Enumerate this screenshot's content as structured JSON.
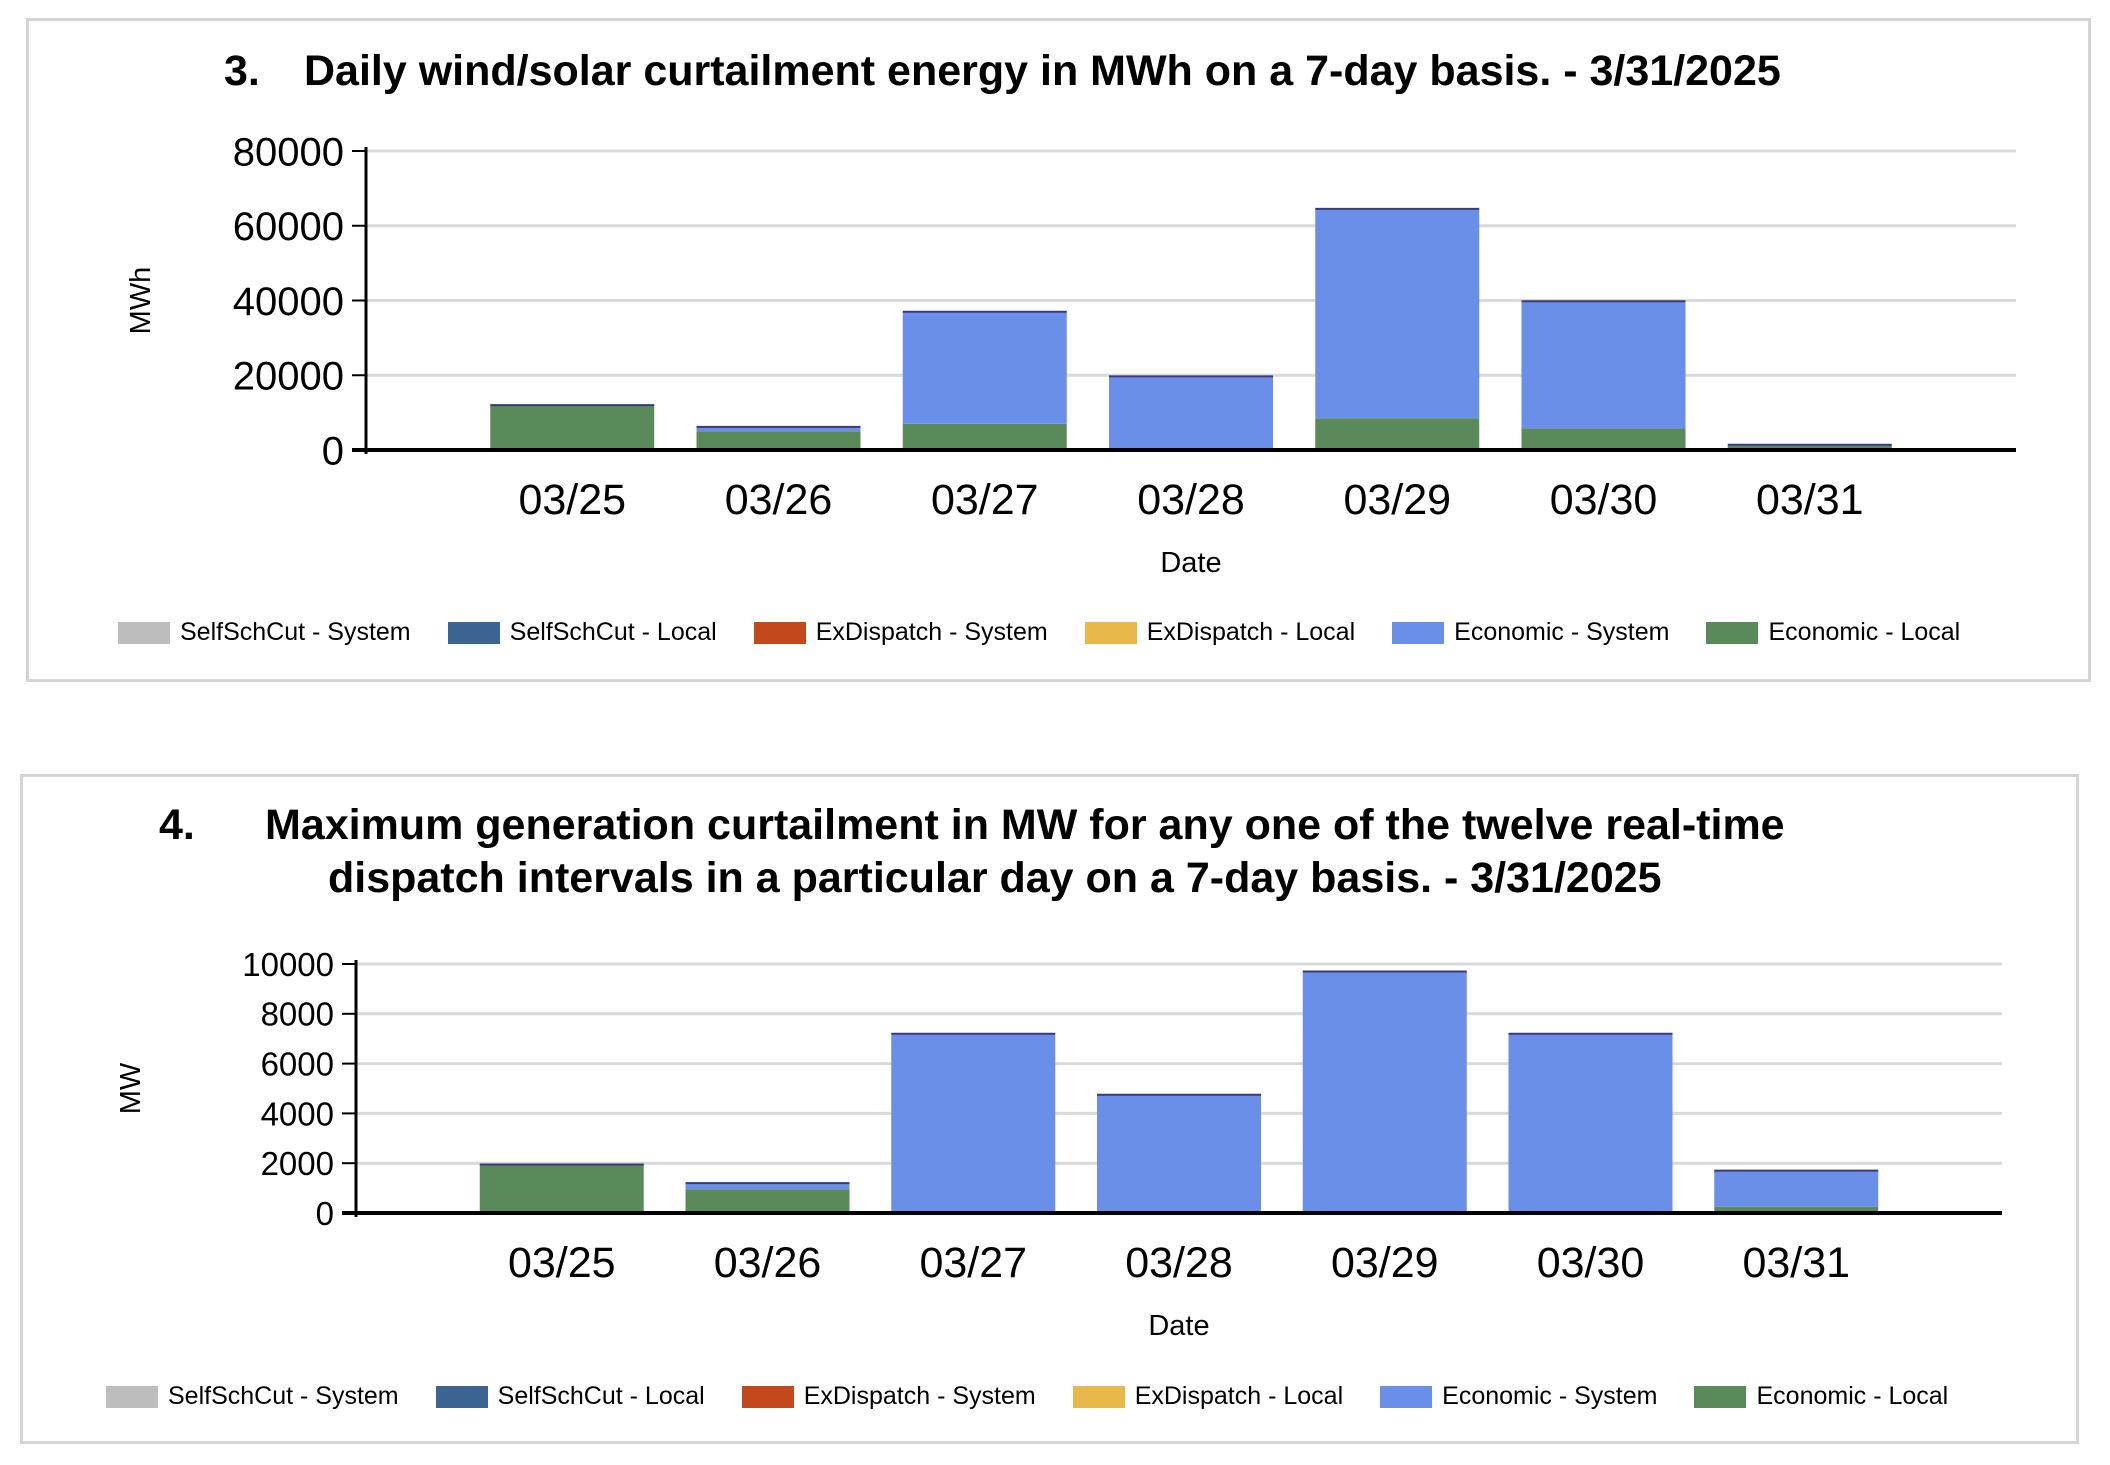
{
  "colors": {
    "selfschcut_system": "#bdbdbd",
    "selfschcut_local": "#3b6493",
    "exdispatch_system": "#c3481b",
    "exdispatch_local": "#e8b94a",
    "economic_system": "#6a8fe9",
    "economic_local": "#5a8a5a"
  },
  "chart_data": [
    {
      "type": "bar",
      "stacked": true,
      "title_number": "3.",
      "title": "Daily wind/solar curtailment energy in MWh on a 7-day basis. - 3/31/2025",
      "xlabel": "Date",
      "ylabel": "MWh",
      "ylim": [
        0,
        80000
      ],
      "yticks": [
        "80000",
        "60000",
        "40000",
        "20000",
        "0"
      ],
      "categories": [
        "03/25",
        "03/26",
        "03/27",
        "03/28",
        "03/29",
        "03/30",
        "03/31"
      ],
      "series": [
        {
          "name": "SelfSchCut - System",
          "values": [
            0,
            0,
            0,
            0,
            0,
            0,
            0
          ]
        },
        {
          "name": "SelfSchCut - Local",
          "values": [
            0,
            0,
            0,
            0,
            0,
            0,
            0
          ]
        },
        {
          "name": "ExDispatch - System",
          "values": [
            0,
            0,
            0,
            0,
            0,
            0,
            0
          ]
        },
        {
          "name": "ExDispatch - Local",
          "values": [
            0,
            0,
            0,
            0,
            0,
            0,
            0
          ]
        },
        {
          "name": "Economic - System",
          "values": [
            0,
            1200,
            30000,
            19500,
            56000,
            34000,
            200
          ]
        },
        {
          "name": "Economic - Local",
          "values": [
            12000,
            5000,
            7000,
            200,
            8500,
            5800,
            1200
          ]
        }
      ],
      "legend_position": "bottom",
      "grid": true
    },
    {
      "type": "bar",
      "stacked": true,
      "title_number": "4.",
      "title": "Maximum generation curtailment in MW for any one of the twelve real-time",
      "title_line2": "dispatch intervals in a particular day on a 7-day basis. - 3/31/2025",
      "xlabel": "Date",
      "ylabel": "MW",
      "ylim": [
        0,
        10000
      ],
      "yticks": [
        "10000",
        "8000",
        "6000",
        "4000",
        "2000",
        "0"
      ],
      "categories": [
        "03/25",
        "03/26",
        "03/27",
        "03/28",
        "03/29",
        "03/30",
        "03/31"
      ],
      "series": [
        {
          "name": "SelfSchCut - System",
          "values": [
            0,
            0,
            0,
            0,
            0,
            0,
            0
          ]
        },
        {
          "name": "SelfSchCut - Local",
          "values": [
            0,
            0,
            0,
            0,
            0,
            0,
            0
          ]
        },
        {
          "name": "ExDispatch - System",
          "values": [
            0,
            0,
            0,
            0,
            0,
            0,
            0
          ]
        },
        {
          "name": "ExDispatch - Local",
          "values": [
            0,
            0,
            0,
            0,
            0,
            0,
            0
          ]
        },
        {
          "name": "Economic - System",
          "values": [
            0,
            250,
            7200,
            4750,
            9700,
            7200,
            1450
          ]
        },
        {
          "name": "Economic - Local",
          "values": [
            1950,
            950,
            0,
            0,
            0,
            0,
            250
          ]
        }
      ],
      "legend_position": "bottom",
      "grid": true
    }
  ]
}
